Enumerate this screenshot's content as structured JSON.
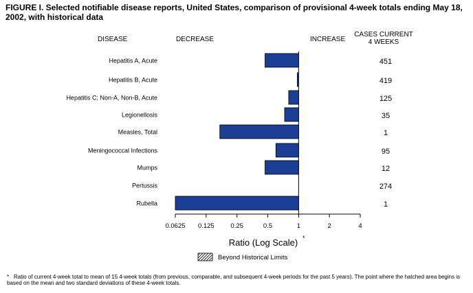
{
  "figure_title": "FIGURE I. Selected notifiable disease reports, United States, comparison of provisional 4-week totals ending May 18, 2002, with historical data",
  "headers": {
    "disease": "DISEASE",
    "decrease": "DECREASE",
    "increase": "INCREASE",
    "cases_line1": "CASES CURRENT",
    "cases_line2": "4 WEEKS"
  },
  "chart_data": {
    "type": "bar",
    "orientation": "horizontal",
    "scale": "log2",
    "baseline": 1,
    "categories": [
      "Hepatitis A, Acute",
      "Hepatitis B, Acute",
      "Hepatitis C; Non-A, Non-B, Acute",
      "Legionellosis",
      "Measles, Total",
      "Meningococcal Infections",
      "Mumps",
      "Pertussis",
      "Rubella"
    ],
    "values": [
      0.47,
      0.97,
      0.8,
      0.73,
      0.17,
      0.6,
      0.47,
      1.0,
      0.0625
    ],
    "cases_current_4_weeks": [
      "451",
      "419",
      "125",
      "35",
      "1",
      "95",
      "12",
      "274",
      "1"
    ],
    "x_ticks": [
      0.0625,
      0.125,
      0.25,
      0.5,
      1,
      2,
      4
    ],
    "x_tick_labels": [
      "0.0625",
      "0.125",
      "0.25",
      "0.5",
      "1",
      "2",
      "4"
    ],
    "xlabel": "Ratio (Log Scale)",
    "xlabel_marker": "*",
    "xlim": [
      0.0625,
      4
    ],
    "bar_color": "#1a3f95",
    "legend": {
      "label": "Beyond Historical Limits",
      "symbol": "hatched"
    }
  },
  "footnote": {
    "marker": "*",
    "text": "Ratio of current 4-week total to mean of 15 4-week totals (from previous, comparable, and subsequent 4-week periods for the past 5 years). The point where the hatched area begins is based on the mean and two standard deviations of these 4-week totals."
  }
}
